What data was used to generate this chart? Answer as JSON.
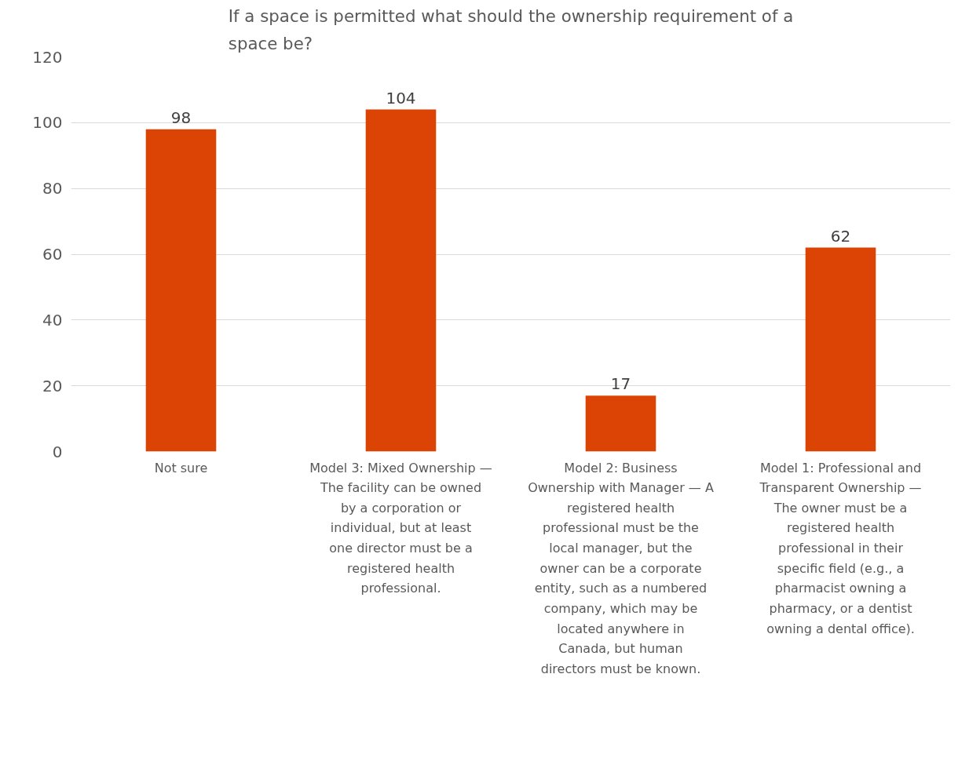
{
  "chart_data": {
    "type": "bar",
    "title": "If a space is permitted what should the ownership requirement of a space be?",
    "categories": [
      "Not sure",
      "Model 3: Mixed Ownership — The facility can be owned by a corporation or individual, but at least one director must be a registered health professional.",
      "Model 2: Business Ownership with Manager — A registered health professional must be the local manager, but the owner can be a corporate entity, such as a numbered company, which may be located anywhere in Canada, but human directors must be known.",
      "Model 1: Professional and Transparent Ownership — The owner must be a registered health professional in their specific field (e.g., a pharmacist owning a pharmacy, or a dentist owning a dental office)."
    ],
    "values": [
      98,
      104,
      17,
      62
    ],
    "color": "#dc4405",
    "ylim": [
      0,
      120
    ],
    "yticks": [
      0,
      20,
      40,
      60,
      80,
      100,
      120
    ],
    "grid": "y",
    "data_labels": true
  }
}
